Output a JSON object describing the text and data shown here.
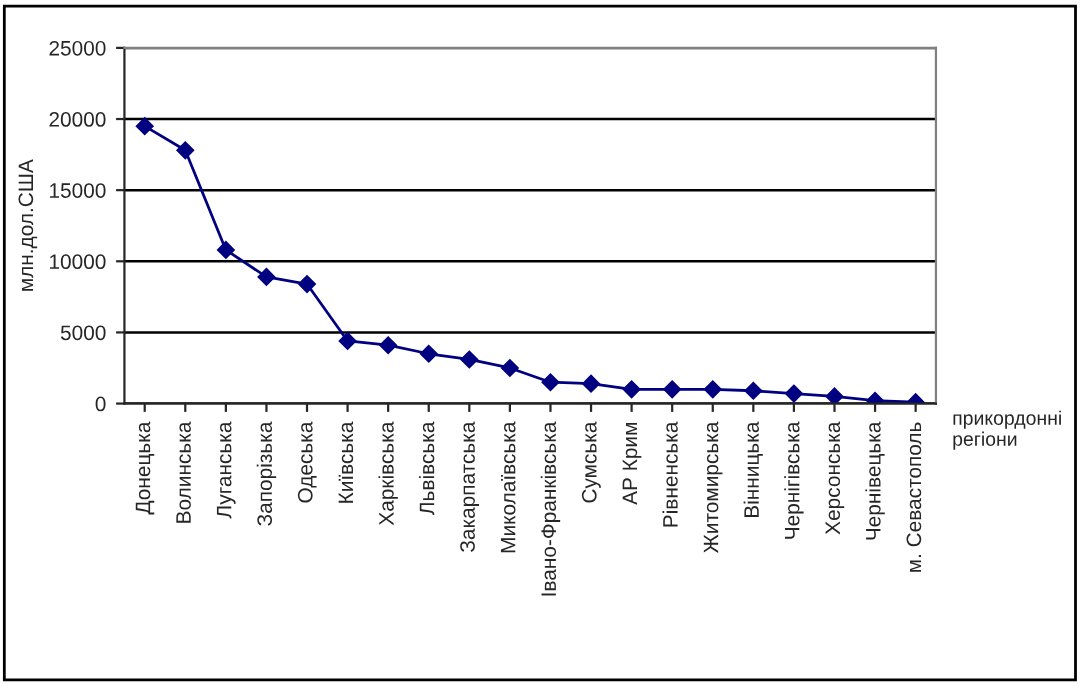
{
  "chart_data": {
    "type": "line",
    "xlabel": "прикордонні регіони",
    "ylabel": "млн.дол.США",
    "categories": [
      "Донецька",
      "Волинська",
      "Луганська",
      "Запорізька",
      "Одеська",
      "Київська",
      "Харківська",
      "Львівська",
      "Закарпатська",
      "Миколаївська",
      "Івано-Франківська",
      "Сумська",
      "АР Крим",
      "Рівненська",
      "Житомирська",
      "Вінницька",
      "Чернігівська",
      "Херсонська",
      "Чернівецька",
      "м. Севастополь"
    ],
    "series": [
      {
        "color": "#000080",
        "values": [
          19500,
          17800,
          10800,
          8900,
          8400,
          4400,
          4100,
          3500,
          3100,
          2500,
          1500,
          1400,
          1000,
          1000,
          1000,
          900,
          700,
          500,
          200,
          100
        ]
      }
    ],
    "ylim": [
      0,
      25000
    ],
    "yticks": [
      0,
      5000,
      10000,
      15000,
      20000,
      25000
    ],
    "grid": "y",
    "marker": "diamond",
    "line_style": "solid"
  }
}
